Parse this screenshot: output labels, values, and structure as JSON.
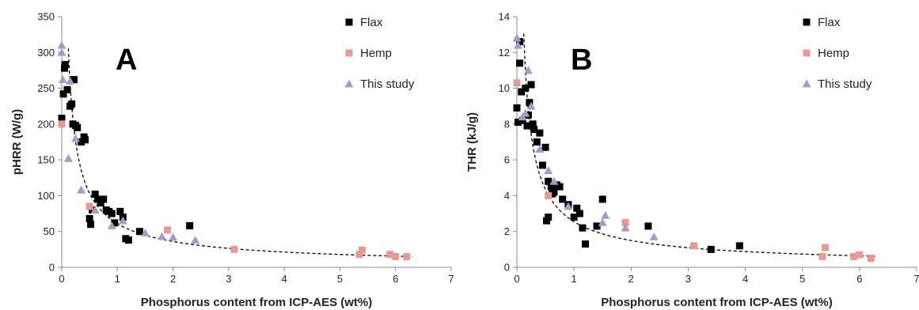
{
  "colors": {
    "flax": "#000000",
    "hemp": "#e69a96",
    "study": "#a999c6",
    "axis": "#888888",
    "fit": "#000000"
  },
  "chart_data": [
    {
      "type": "scatter",
      "panel_label": "A",
      "xlabel": "Phosphorus content from ICP-AES (wt%)",
      "ylabel": "pHRR (W/g)",
      "xlim": [
        0,
        7
      ],
      "ylim": [
        0,
        350
      ],
      "xticks": [
        "0",
        "1",
        "2",
        "3",
        "4",
        "5",
        "6",
        "7"
      ],
      "yticks": [
        "0",
        "50",
        "100",
        "150",
        "200",
        "250",
        "300",
        "350"
      ],
      "legend": [
        "Flax",
        "Hemp",
        "This study"
      ],
      "series": [
        {
          "name": "Flax",
          "marker": "square",
          "points": [
            [
              0.0,
              208
            ],
            [
              0.03,
              242
            ],
            [
              0.05,
              278
            ],
            [
              0.06,
              283
            ],
            [
              0.1,
              248
            ],
            [
              0.15,
              225
            ],
            [
              0.18,
              228
            ],
            [
              0.22,
              262
            ],
            [
              0.2,
              200
            ],
            [
              0.25,
              198
            ],
            [
              0.28,
              195
            ],
            [
              0.35,
              175
            ],
            [
              0.4,
              182
            ],
            [
              0.42,
              178
            ],
            [
              0.5,
              68
            ],
            [
              0.52,
              60
            ],
            [
              0.55,
              80
            ],
            [
              0.6,
              102
            ],
            [
              0.65,
              95
            ],
            [
              0.7,
              90
            ],
            [
              0.75,
              95
            ],
            [
              0.8,
              80
            ],
            [
              0.85,
              78
            ],
            [
              0.9,
              75
            ],
            [
              0.95,
              62
            ],
            [
              1.05,
              78
            ],
            [
              1.1,
              70
            ],
            [
              1.15,
              40
            ],
            [
              1.2,
              38
            ],
            [
              1.4,
              50
            ],
            [
              2.3,
              58
            ]
          ]
        },
        {
          "name": "Hemp",
          "marker": "square",
          "points": [
            [
              0.0,
              200
            ],
            [
              0.5,
              85
            ],
            [
              1.9,
              52
            ],
            [
              3.1,
              25
            ],
            [
              5.35,
              18
            ],
            [
              5.4,
              24
            ],
            [
              5.9,
              18
            ],
            [
              6.0,
              15
            ],
            [
              6.2,
              15
            ]
          ]
        },
        {
          "name": "This study",
          "marker": "triangle",
          "points": [
            [
              0.0,
              310
            ],
            [
              0.0,
              300
            ],
            [
              0.02,
              262
            ],
            [
              0.12,
              152
            ],
            [
              0.15,
              260
            ],
            [
              0.25,
              180
            ],
            [
              0.35,
              108
            ],
            [
              0.6,
              80
            ],
            [
              0.9,
              58
            ],
            [
              1.1,
              65
            ],
            [
              1.5,
              48
            ],
            [
              1.8,
              43
            ],
            [
              2.0,
              42
            ],
            [
              2.4,
              38
            ]
          ]
        }
      ],
      "trend": {
        "style": "dashed"
      }
    },
    {
      "type": "scatter",
      "panel_label": "B",
      "xlabel": "Phosphorus content from ICP-AES (wt%)",
      "ylabel": "THR (kJ/g)",
      "xlim": [
        0,
        7
      ],
      "ylim": [
        0,
        14
      ],
      "xticks": [
        "0",
        "1",
        "2",
        "3",
        "4",
        "5",
        "6",
        "7"
      ],
      "yticks": [
        "0",
        "2",
        "4",
        "6",
        "8",
        "10",
        "12",
        "14"
      ],
      "legend": [
        "Flax",
        "Hemp",
        "This study"
      ],
      "series": [
        {
          "name": "Flax",
          "marker": "square",
          "points": [
            [
              0.0,
              8.9
            ],
            [
              0.02,
              8.1
            ],
            [
              0.05,
              11.4
            ],
            [
              0.05,
              12.6
            ],
            [
              0.08,
              9.8
            ],
            [
              0.1,
              8.2
            ],
            [
              0.15,
              10.0
            ],
            [
              0.18,
              7.9
            ],
            [
              0.2,
              8.5
            ],
            [
              0.22,
              9.2
            ],
            [
              0.25,
              10.2
            ],
            [
              0.28,
              8.0
            ],
            [
              0.3,
              7.7
            ],
            [
              0.35,
              7.0
            ],
            [
              0.4,
              7.5
            ],
            [
              0.45,
              5.7
            ],
            [
              0.5,
              6.7
            ],
            [
              0.55,
              4.8
            ],
            [
              0.6,
              4.5
            ],
            [
              0.62,
              4.1
            ],
            [
              0.65,
              4.2
            ],
            [
              0.7,
              4.6
            ],
            [
              0.75,
              4.5
            ],
            [
              0.8,
              3.8
            ],
            [
              0.9,
              3.5
            ],
            [
              1.0,
              2.8
            ],
            [
              1.05,
              3.3
            ],
            [
              1.1,
              3.0
            ],
            [
              1.15,
              2.2
            ],
            [
              1.2,
              1.3
            ],
            [
              1.4,
              2.3
            ],
            [
              1.5,
              3.8
            ],
            [
              0.52,
              2.6
            ],
            [
              0.55,
              2.8
            ],
            [
              2.3,
              2.3
            ],
            [
              3.4,
              1.0
            ],
            [
              3.9,
              1.2
            ]
          ]
        },
        {
          "name": "Hemp",
          "marker": "square",
          "points": [
            [
              0.0,
              10.3
            ],
            [
              0.55,
              4.0
            ],
            [
              1.9,
              2.5
            ],
            [
              3.1,
              1.2
            ],
            [
              5.35,
              0.6
            ],
            [
              5.4,
              1.1
            ],
            [
              5.9,
              0.6
            ],
            [
              6.0,
              0.7
            ],
            [
              6.2,
              0.5
            ]
          ]
        },
        {
          "name": "This study",
          "marker": "triangle",
          "points": [
            [
              0.0,
              12.8
            ],
            [
              0.02,
              12.4
            ],
            [
              0.1,
              8.4
            ],
            [
              0.15,
              8.6
            ],
            [
              0.2,
              11.0
            ],
            [
              0.25,
              9.0
            ],
            [
              0.4,
              6.6
            ],
            [
              0.55,
              5.4
            ],
            [
              0.65,
              4.8
            ],
            [
              0.9,
              3.4
            ],
            [
              1.5,
              2.5
            ],
            [
              1.55,
              2.9
            ],
            [
              1.9,
              2.2
            ],
            [
              2.4,
              1.7
            ]
          ]
        }
      ],
      "trend": {
        "style": "dashed"
      }
    }
  ]
}
